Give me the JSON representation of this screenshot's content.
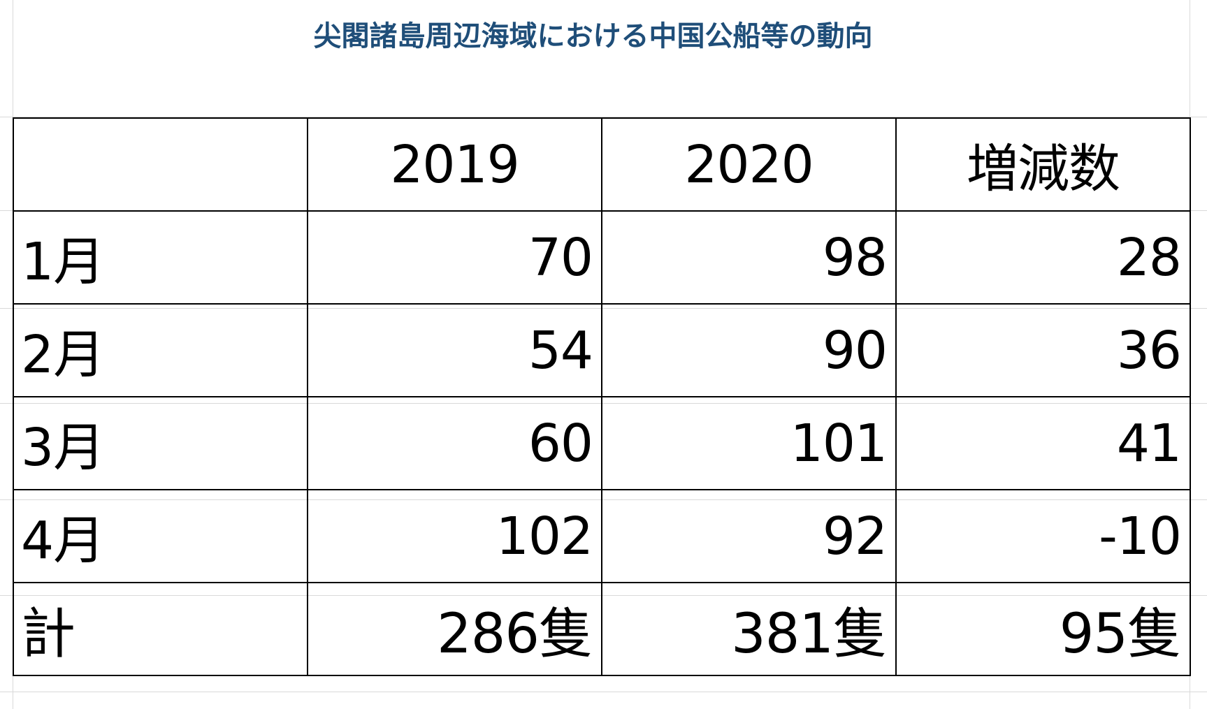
{
  "title": "尖閣諸島周辺海域における中国公船等の動向",
  "colors": {
    "title": "#1f4e79",
    "increase": "#e3232a",
    "decrease": "#4a74c2",
    "total_increase": "#e60012"
  },
  "table": {
    "headers": [
      "",
      "2019",
      "2020",
      "増減数"
    ],
    "rows": [
      {
        "label": "1月",
        "y2019": "70",
        "y2020": "98",
        "diff": "28"
      },
      {
        "label": "2月",
        "y2019": "54",
        "y2020": "90",
        "diff": "36"
      },
      {
        "label": "3月",
        "y2019": "60",
        "y2020": "101",
        "diff": "41"
      },
      {
        "label": "4月",
        "y2019": "102",
        "y2020": "92",
        "diff": "-10"
      }
    ],
    "total": {
      "label": "計",
      "y2019": "286隻",
      "y2020": "381隻",
      "diff": "95隻"
    }
  }
}
